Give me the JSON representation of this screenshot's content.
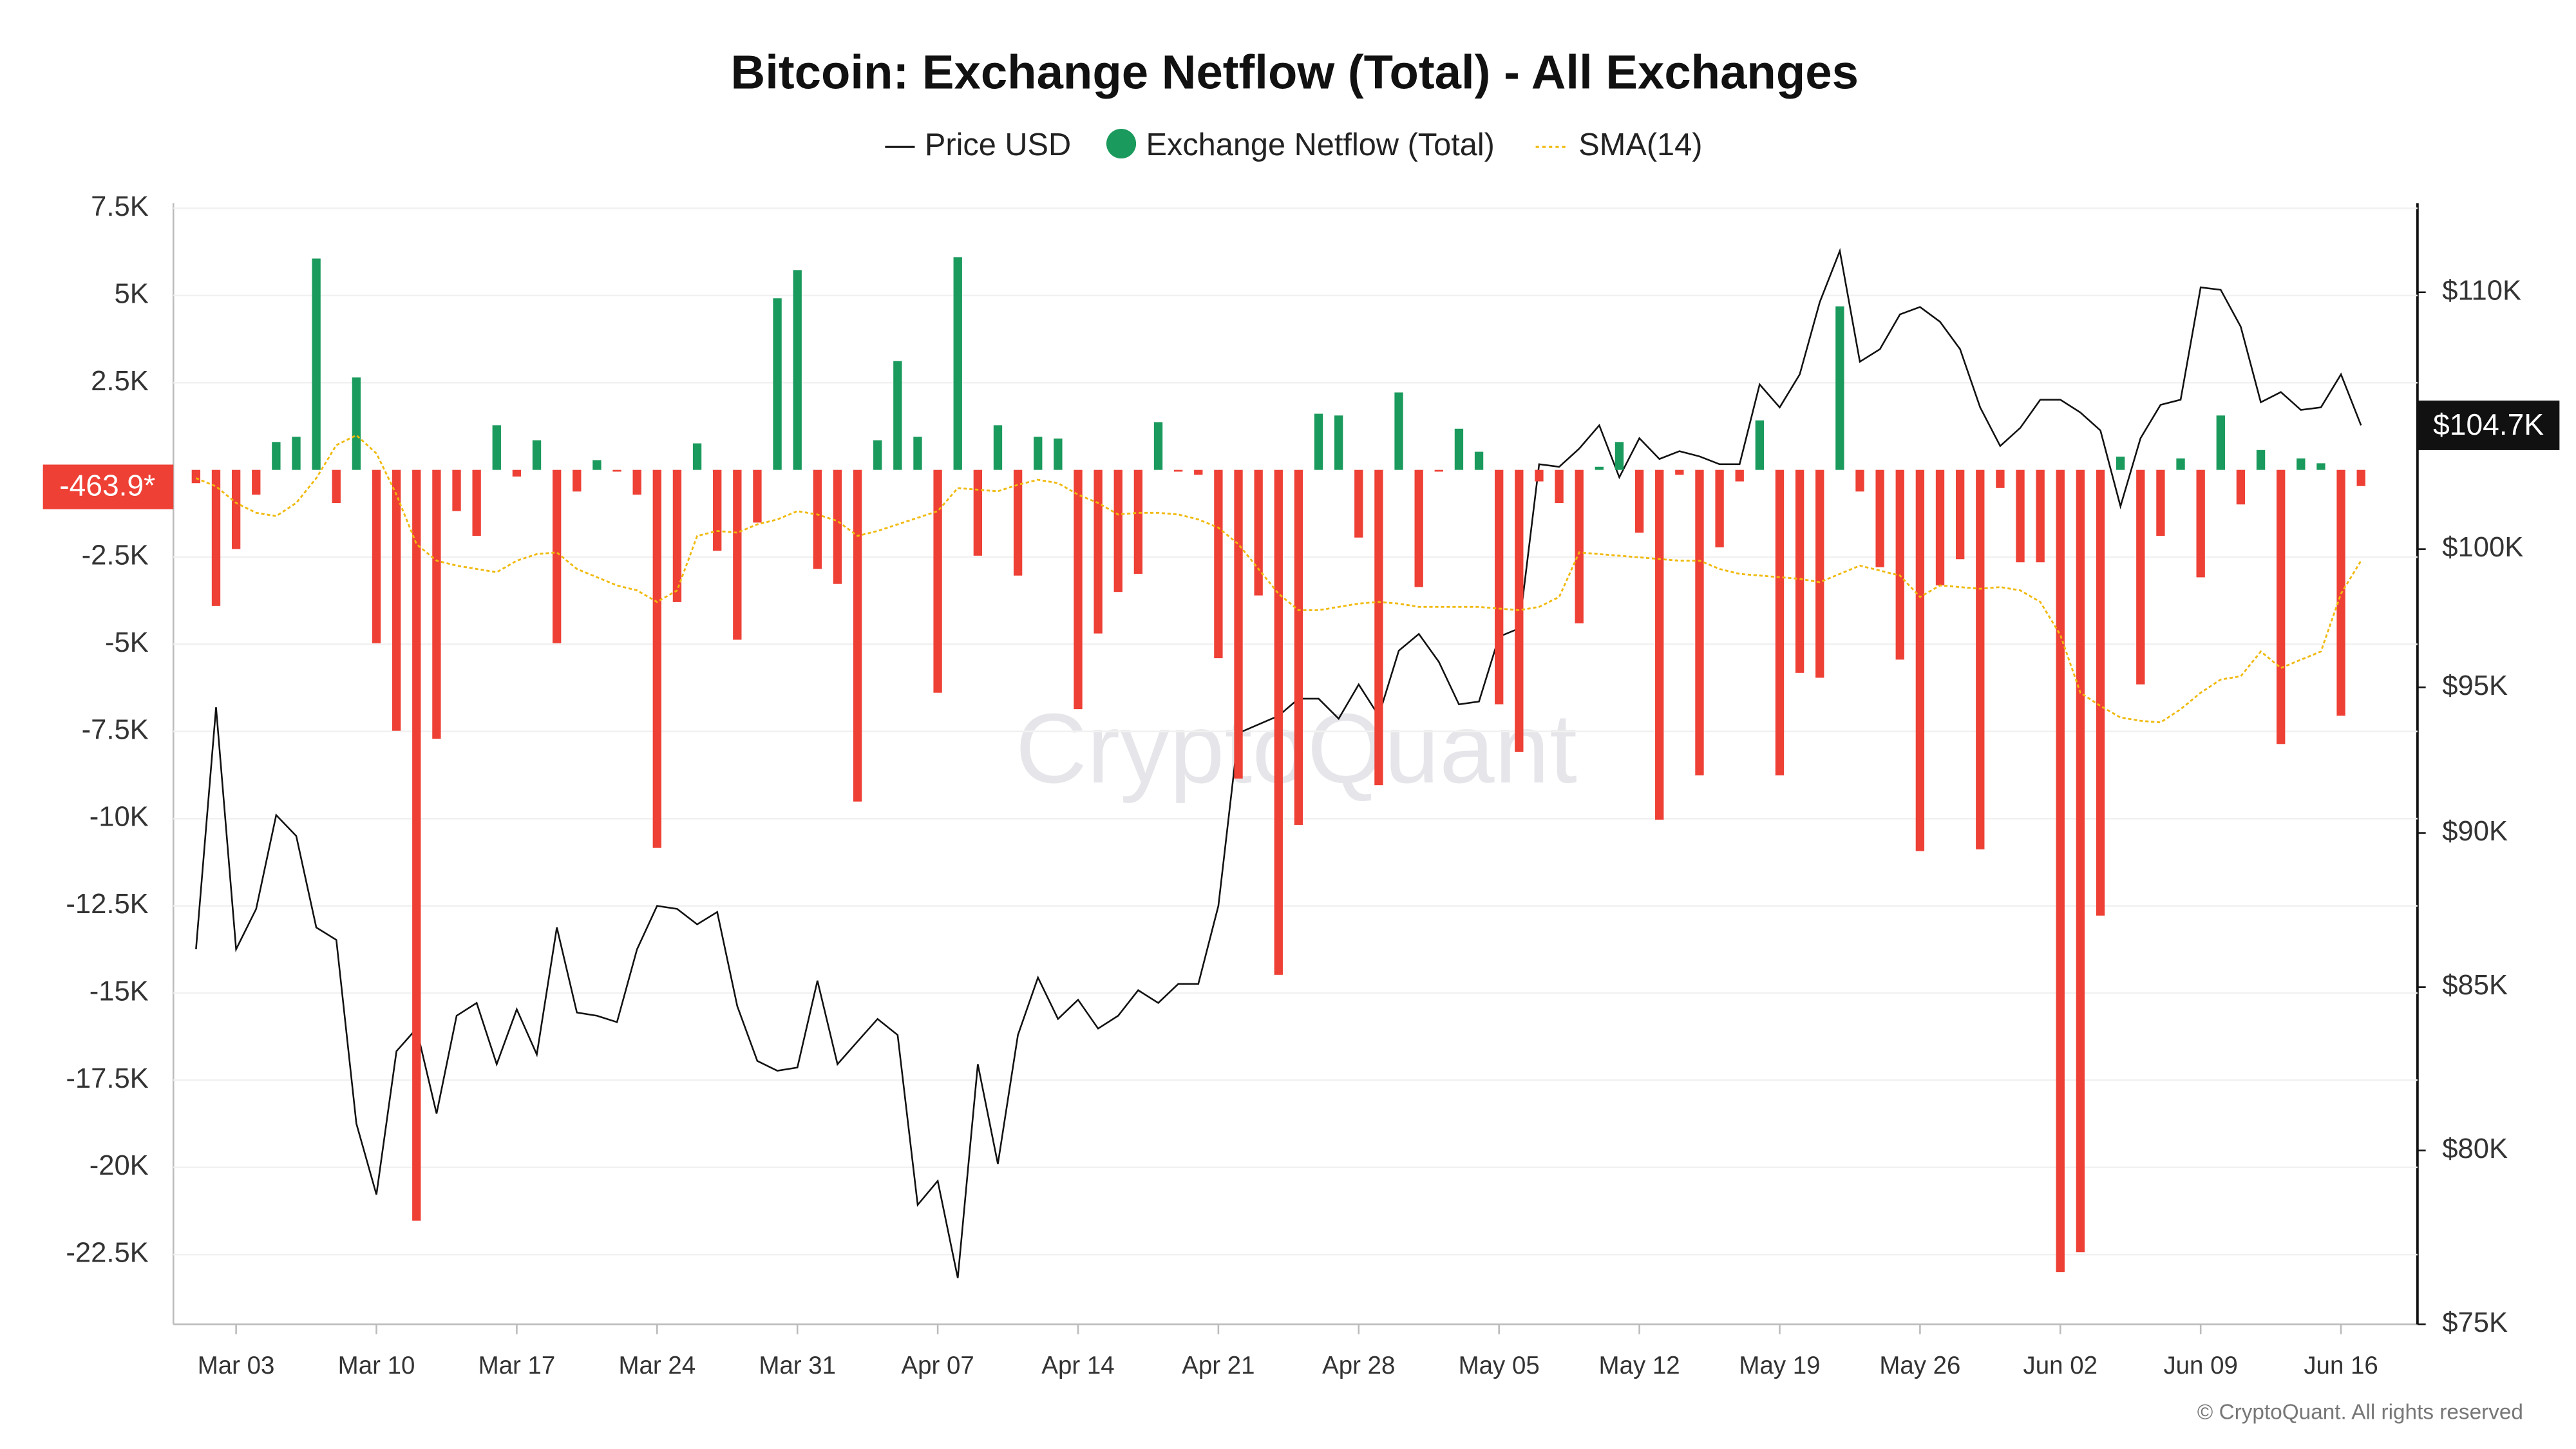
{
  "chart_data": {
    "type": "bar",
    "title": "Bitcoin: Exchange Netflow (Total) - All Exchanges",
    "categories": [
      null,
      null,
      "Mar 03",
      null,
      null,
      null,
      null,
      null,
      null,
      "Mar 10",
      null,
      null,
      null,
      null,
      null,
      null,
      "Mar 17",
      null,
      null,
      null,
      null,
      null,
      null,
      "Mar 24",
      null,
      null,
      null,
      null,
      null,
      null,
      "Mar 31",
      null,
      null,
      null,
      null,
      null,
      null,
      "Apr 07",
      null,
      null,
      null,
      null,
      null,
      null,
      "Apr 14",
      null,
      null,
      null,
      null,
      null,
      null,
      "Apr 21",
      null,
      null,
      null,
      null,
      null,
      null,
      "Apr 28",
      null,
      null,
      null,
      null,
      null,
      null,
      "May 05",
      null,
      null,
      null,
      null,
      null,
      null,
      "May 12",
      null,
      null,
      null,
      null,
      null,
      null,
      "May 19",
      null,
      null,
      null,
      null,
      null,
      null,
      "May 26",
      null,
      null,
      null,
      null,
      null,
      null,
      "Jun 02",
      null,
      null,
      null,
      null,
      null,
      null,
      "Jun 09",
      null,
      null,
      null,
      null,
      null,
      null,
      "Jun 16",
      null
    ],
    "series": [
      {
        "name": "Price USD",
        "type": "line",
        "color": "#111111",
        "axis": "y2",
        "values": [
          86200,
          94300,
          86200,
          87500,
          90600,
          89900,
          86900,
          86500,
          80800,
          78700,
          83000,
          83700,
          81100,
          84100,
          84500,
          82600,
          84300,
          82900,
          86900,
          84200,
          84100,
          83900,
          86200,
          87600,
          87500,
          87000,
          87400,
          84400,
          82700,
          82400,
          82500,
          85200,
          82600,
          83300,
          84000,
          83500,
          78400,
          79100,
          76300,
          82600,
          79600,
          83500,
          85300,
          84000,
          84600,
          83700,
          84100,
          84900,
          84500,
          85100,
          85100,
          87600,
          93400,
          93700,
          94000,
          94600,
          94600,
          93900,
          95100,
          94000,
          96300,
          96900,
          95900,
          94400,
          94500,
          96800,
          97100,
          103200,
          103100,
          103800,
          104700,
          102700,
          104200,
          103400,
          103700,
          103500,
          103200,
          103200,
          106300,
          105400,
          106700,
          109600,
          111700,
          107200,
          107700,
          109100,
          109400,
          108800,
          107700,
          105400,
          103900,
          104600,
          105700,
          105700,
          105200,
          104500,
          101600,
          104200,
          105500,
          105700,
          110200,
          110100,
          108600,
          105600,
          106000,
          105300,
          105400,
          106700,
          104700
        ]
      },
      {
        "name": "Exchange Netflow (Total)",
        "type": "bar",
        "color": "#1a9a5c",
        "negative_color": "#ee4035",
        "values": [
          -380,
          -3900,
          -2270,
          -710,
          800,
          950,
          6060,
          -950,
          2650,
          -4970,
          -7480,
          -21530,
          -7710,
          -1180,
          -1890,
          1280,
          -190,
          850,
          -4970,
          -620,
          280,
          -50,
          -710,
          -10840,
          -3790,
          760,
          -2320,
          -4870,
          -1510,
          4920,
          5730,
          -2840,
          -3270,
          -9510,
          850,
          3120,
          950,
          -6390,
          6100,
          -2460,
          1280,
          -3030,
          950,
          900,
          -6860,
          -4690,
          -3500,
          -2980,
          1370,
          -50,
          -140,
          -5400,
          -8850,
          -3600,
          -14480,
          -10180,
          1610,
          1560,
          -1940,
          -9040,
          2220,
          -3360,
          -50,
          1180,
          520,
          -6720,
          -8090,
          -330,
          -950,
          -4400,
          90,
          800,
          -1800,
          -10030,
          -140,
          -8760,
          -2220,
          -330,
          1420,
          -8760,
          -5820,
          -5960,
          4690,
          -620,
          -2790,
          -5440,
          -10930,
          -3310,
          -2560,
          -10880,
          -520,
          -2650,
          -2650,
          -23000,
          -22430,
          -12780,
          380,
          -6150,
          -1890,
          330,
          -3080,
          1560,
          -990,
          570,
          -7860,
          330,
          190,
          -7050,
          -463.9
        ]
      },
      {
        "name": "SMA(14)",
        "type": "line",
        "color": "#f0b90b",
        "dashed": true,
        "values": [
          -237,
          -473,
          -947,
          -1231,
          -1326,
          -947,
          -237,
          710,
          994,
          473,
          -710,
          -2130,
          -2603,
          -2745,
          -2840,
          -2934,
          -2603,
          -2414,
          -2366,
          -2840,
          -3077,
          -3313,
          -3455,
          -3786,
          -3455,
          -1893,
          -1751,
          -1799,
          -1562,
          -1420,
          -1183,
          -1278,
          -1467,
          -1893,
          -1751,
          -1562,
          -1373,
          -1183,
          -521,
          -568,
          -615,
          -426,
          -284,
          -379,
          -710,
          -947,
          -1278,
          -1231,
          -1231,
          -1278,
          -1420,
          -1657,
          -2130,
          -2840,
          -3550,
          -4023,
          -4023,
          -3928,
          -3834,
          -3786,
          -3834,
          -3928,
          -3928,
          -3928,
          -3928,
          -3976,
          -4023,
          -3928,
          -3644,
          -2366,
          -2414,
          -2461,
          -2508,
          -2556,
          -2603,
          -2603,
          -2840,
          -2982,
          -3029,
          -3077,
          -3124,
          -3219,
          -2982,
          -2745,
          -2887,
          -3029,
          -3644,
          -3313,
          -3360,
          -3408,
          -3360,
          -3455,
          -3786,
          -4733,
          -6390,
          -6768,
          -7100,
          -7194,
          -7241,
          -6863,
          -6390,
          -6011,
          -5917,
          -5207,
          -5680,
          -5443,
          -5207,
          -3550,
          -2603
        ]
      }
    ],
    "ylim": [
      -24500,
      7650
    ],
    "yticks": [
      {
        "value": 7500,
        "label": "7.5K"
      },
      {
        "value": 5000,
        "label": "5K"
      },
      {
        "value": 2500,
        "label": "2.5K"
      },
      {
        "value": -2500,
        "label": "-2.5K"
      },
      {
        "value": -5000,
        "label": "-5K"
      },
      {
        "value": -7500,
        "label": "-7.5K"
      },
      {
        "value": -10000,
        "label": "-10K"
      },
      {
        "value": -12500,
        "label": "-12.5K"
      },
      {
        "value": -15000,
        "label": "-15K"
      },
      {
        "value": -17500,
        "label": "-17.5K"
      },
      {
        "value": -20000,
        "label": "-20K"
      },
      {
        "value": -22500,
        "label": "-22.5K"
      }
    ],
    "y2lim": [
      75000,
      113700
    ],
    "y2log": true,
    "y2ticks": [
      {
        "value": 75000,
        "label": "$75K"
      },
      {
        "value": 80000,
        "label": "$80K"
      },
      {
        "value": 85000,
        "label": "$85K"
      },
      {
        "value": 90000,
        "label": "$90K"
      },
      {
        "value": 95000,
        "label": "$95K"
      },
      {
        "value": 100000,
        "label": "$100K"
      },
      {
        "value": 110000,
        "label": "$110K"
      }
    ],
    "grid": true,
    "last_labels": [
      {
        "label": "-463.9*",
        "value": -463.9,
        "axis": "y",
        "color": "#ee4035"
      },
      {
        "label": "$104.7K",
        "value": 104700,
        "axis": "y2",
        "color": "#111111"
      }
    ],
    "watermark": "CryptoQuant",
    "copyright": "© CryptoQuant. All rights reserved"
  }
}
